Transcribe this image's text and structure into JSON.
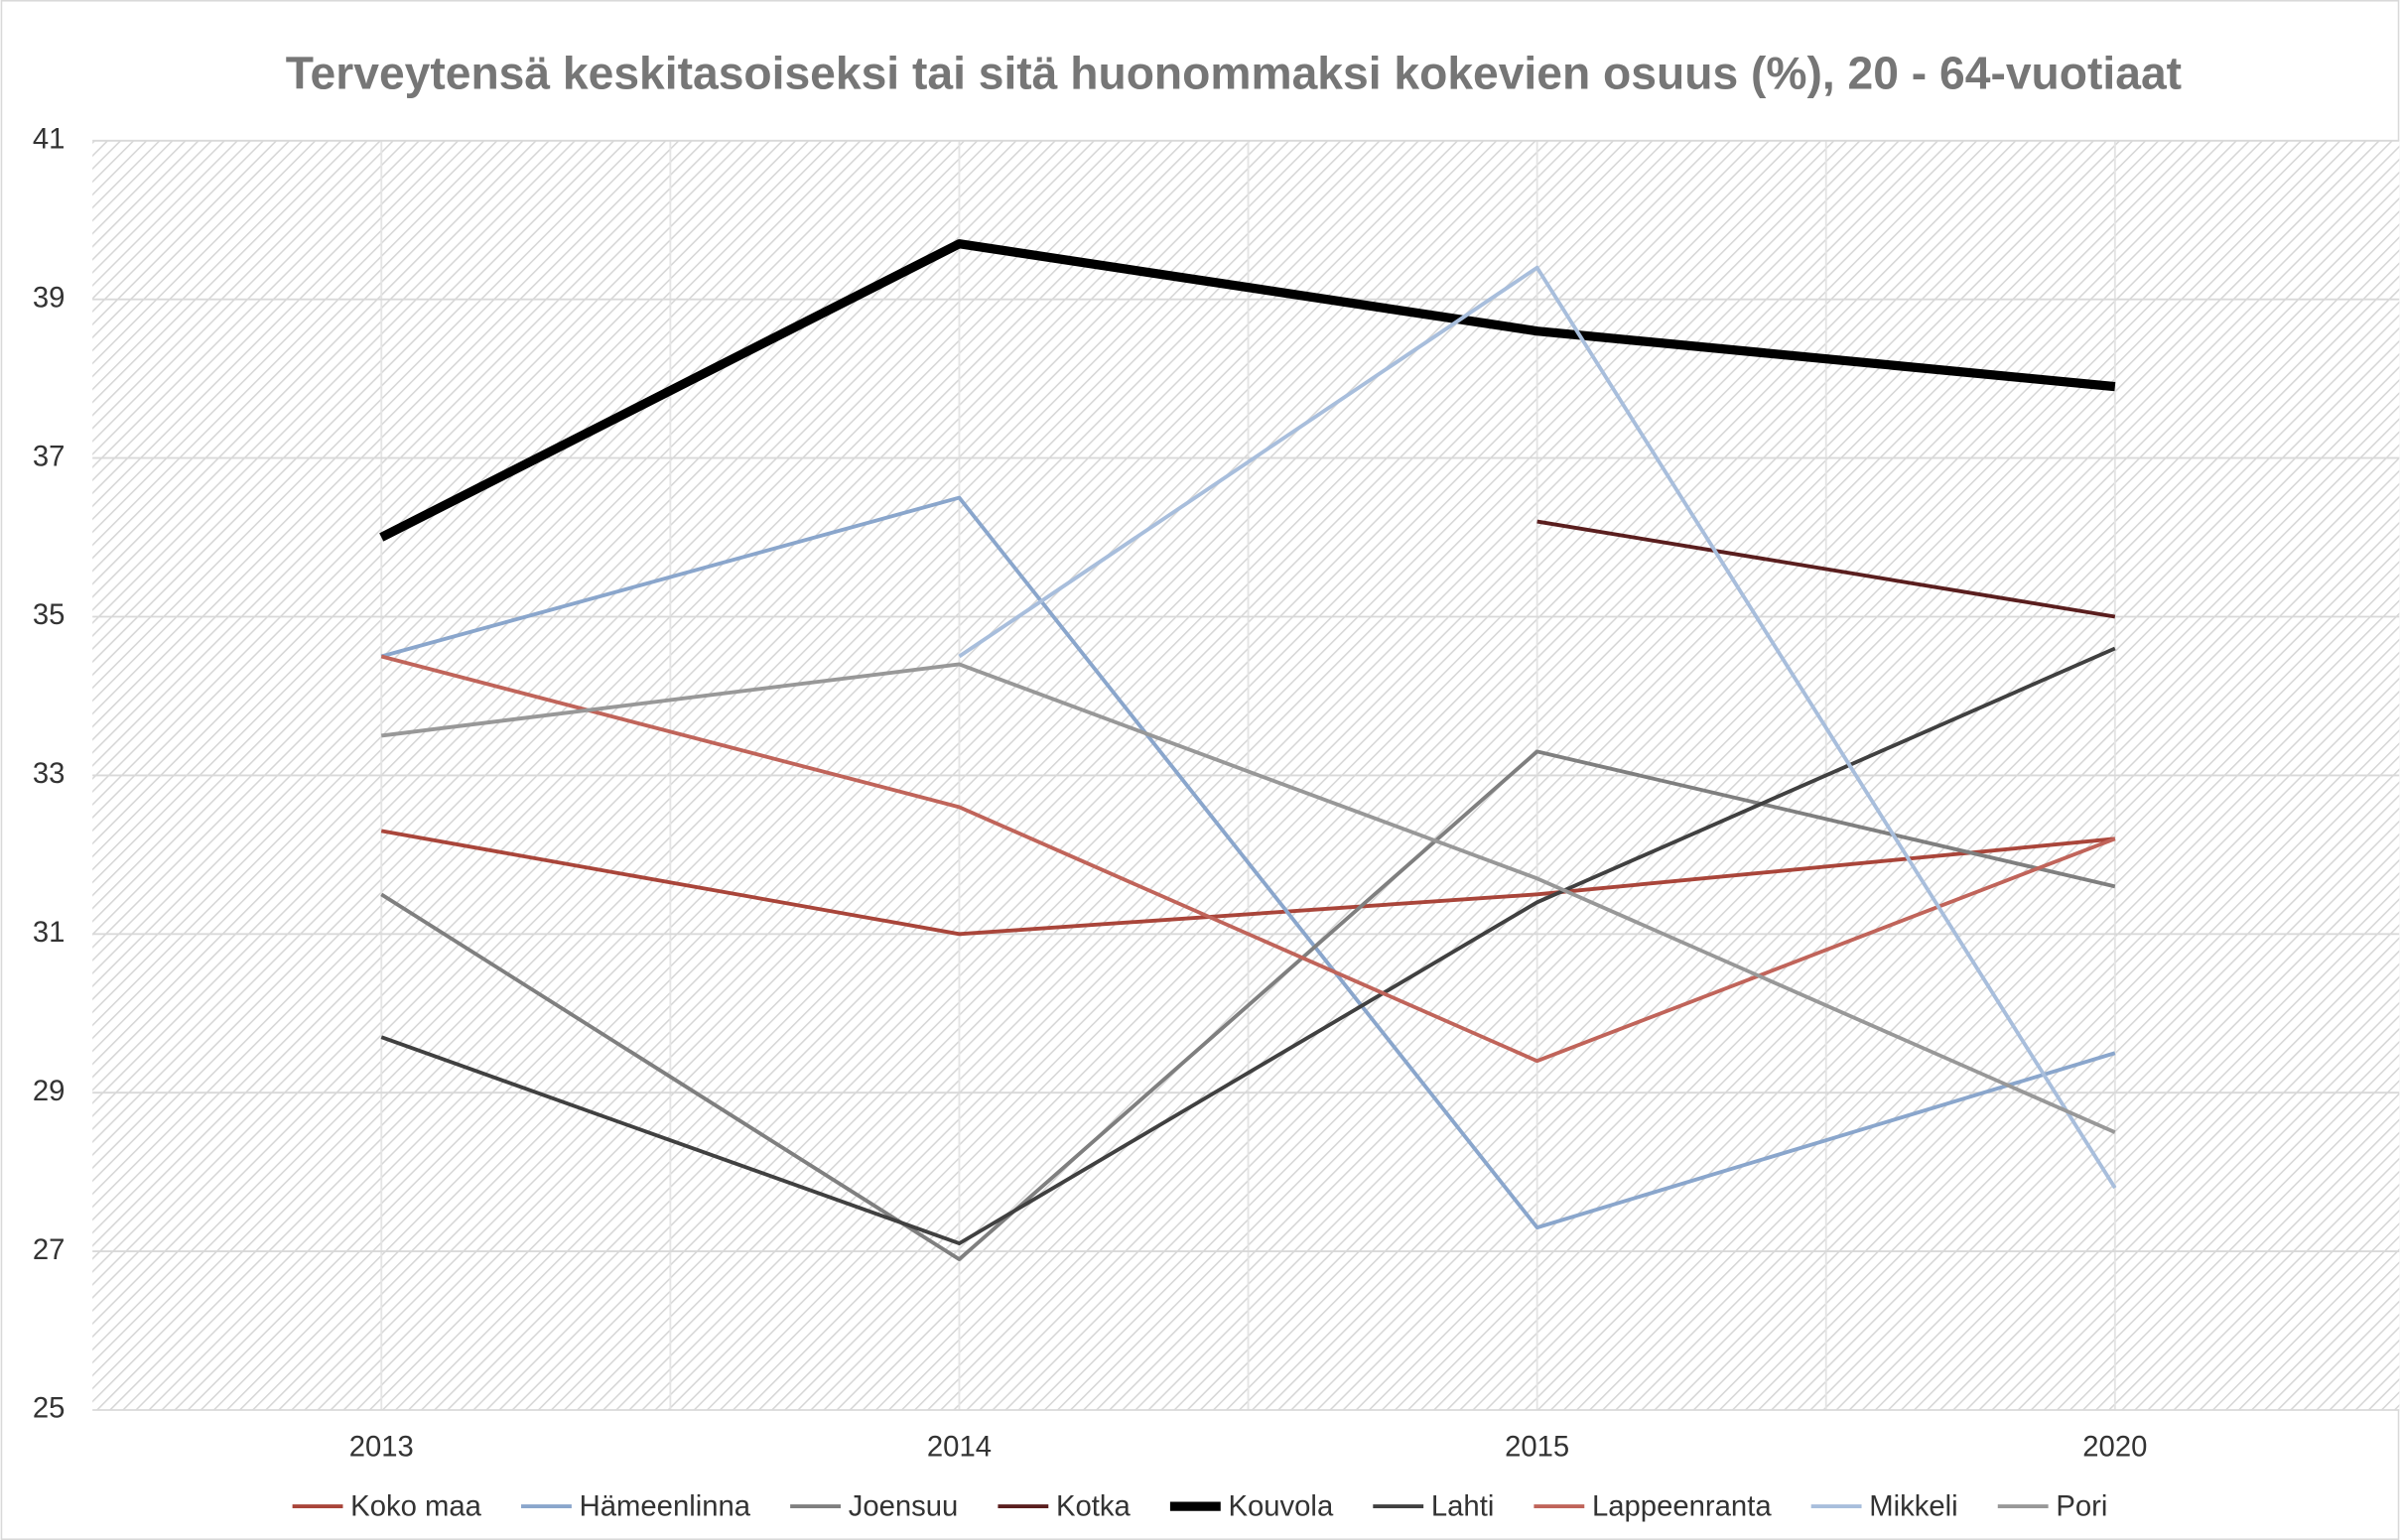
{
  "chart_data": {
    "type": "line",
    "title": "Terveytensä keskitasoiseksi tai sitä huonommaksi kokevien osuus (%), 20 - 64-vuotiaat",
    "categories": [
      "2013",
      "2014",
      "2015",
      "2020"
    ],
    "series": [
      {
        "name": "Koko maa",
        "color": "#a9453a",
        "width": 2.5,
        "values": [
          32.3,
          31.0,
          31.5,
          32.2
        ]
      },
      {
        "name": "Hämeenlinna",
        "color": "#8aa6cc",
        "width": 2.5,
        "values": [
          34.5,
          36.5,
          27.3,
          29.5
        ]
      },
      {
        "name": "Joensuu",
        "color": "#7f7f7f",
        "width": 2.5,
        "values": [
          31.5,
          26.9,
          33.3,
          31.6
        ]
      },
      {
        "name": "Kotka",
        "color": "#5a1e1e",
        "width": 2.5,
        "values": [
          null,
          null,
          36.2,
          35.0
        ]
      },
      {
        "name": "Kouvola",
        "color": "#000000",
        "width": 6,
        "values": [
          36.0,
          39.7,
          38.6,
          37.9
        ]
      },
      {
        "name": "Lahti",
        "color": "#404040",
        "width": 2.5,
        "values": [
          29.7,
          27.1,
          31.4,
          34.6
        ]
      },
      {
        "name": "Lappeenranta",
        "color": "#c0645a",
        "width": 2.5,
        "values": [
          34.5,
          32.6,
          29.4,
          32.2
        ]
      },
      {
        "name": "Mikkeli",
        "color": "#a8bedc",
        "width": 2.5,
        "values": [
          null,
          34.5,
          39.4,
          27.8
        ]
      },
      {
        "name": "Pori",
        "color": "#989898",
        "width": 2.5,
        "values": [
          33.5,
          34.4,
          31.7,
          28.5
        ]
      }
    ],
    "ylim": [
      25,
      41
    ],
    "yticks": [
      25,
      27,
      29,
      31,
      33,
      35,
      37,
      39,
      41
    ],
    "grid": true,
    "legend": "bottom"
  }
}
